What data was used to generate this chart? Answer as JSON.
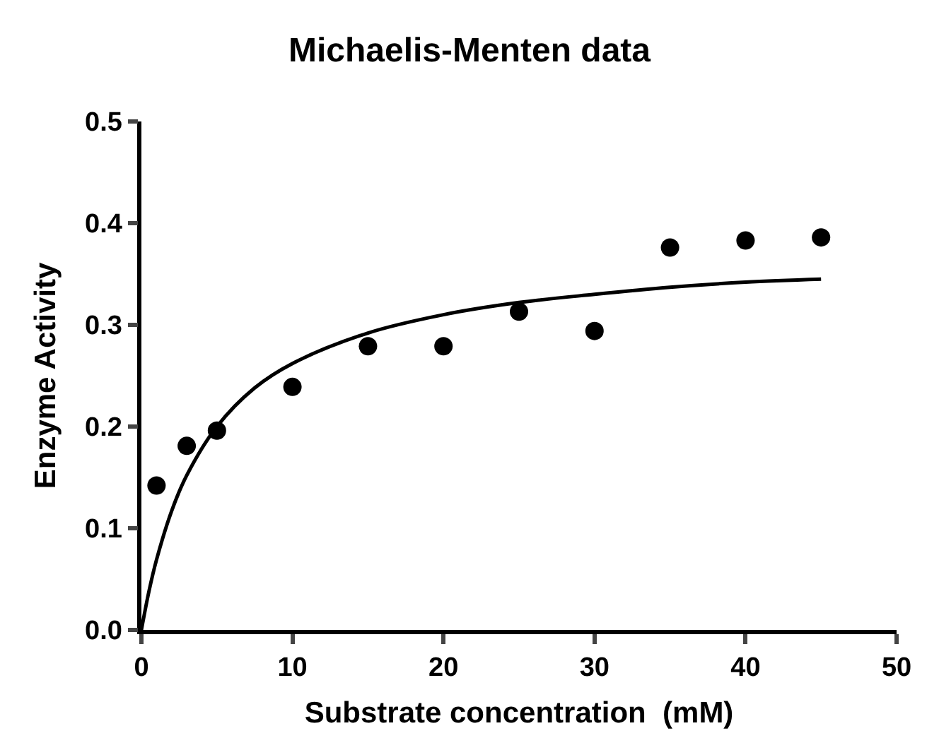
{
  "chart_data": {
    "type": "scatter",
    "title": "Michaelis-Menten data",
    "xlabel": "Substrate concentration  (mM)",
    "ylabel": "Enzyme Activity",
    "xlim": [
      0,
      50
    ],
    "xticks": [
      0,
      10,
      20,
      30,
      40,
      50
    ],
    "ylim": [
      0,
      0.5
    ],
    "yticks": [
      {
        "value": 0,
        "label": "0.0"
      },
      0.1,
      0.2,
      0.3,
      0.4,
      0.5
    ],
    "legend": false,
    "marker": "circle",
    "series": [
      {
        "color": "#000000",
        "x": [
          1,
          3,
          5,
          10,
          15,
          20,
          25,
          30,
          35,
          40,
          45
        ],
        "values": [
          0.142,
          0.181,
          0.196,
          0.239,
          0.279,
          0.279,
          0.313,
          0.294,
          0.376,
          0.383,
          0.386
        ]
      },
      {
        "type": "line",
        "color": "#000000",
        "marker": "none",
        "line_style": "solid",
        "x": [
          0,
          0.5,
          1,
          2,
          3,
          5,
          7.5,
          10,
          15,
          20,
          25,
          30,
          35,
          40,
          45
        ],
        "values": [
          0,
          0.038,
          0.069,
          0.117,
          0.152,
          0.2,
          0.238,
          0.262,
          0.292,
          0.31,
          0.322,
          0.33,
          0.337,
          0.342,
          0.345
        ]
      }
    ]
  }
}
